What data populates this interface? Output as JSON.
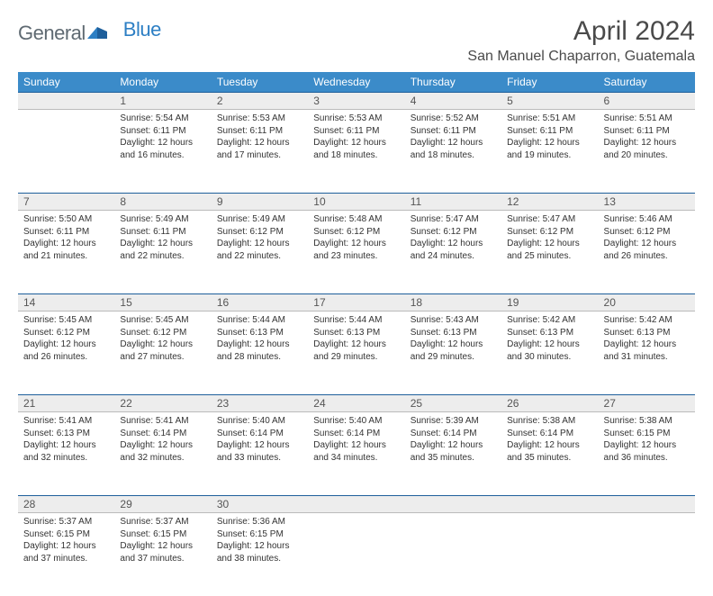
{
  "logo": {
    "part1": "General",
    "part2": "Blue"
  },
  "title": "April 2024",
  "location": "San Manuel Chaparron, Guatemala",
  "colors": {
    "header_bg": "#3b8bc9",
    "header_text": "#ffffff",
    "daynum_bg": "#ededed",
    "row_divider": "#1e5f9b",
    "logo_gray": "#5f6a72",
    "logo_blue": "#2d7fc4",
    "text": "#333333",
    "background": "#ffffff"
  },
  "day_headers": [
    "Sunday",
    "Monday",
    "Tuesday",
    "Wednesday",
    "Thursday",
    "Friday",
    "Saturday"
  ],
  "weeks": [
    [
      null,
      {
        "n": "1",
        "sr": "Sunrise: 5:54 AM",
        "ss": "Sunset: 6:11 PM",
        "d1": "Daylight: 12 hours",
        "d2": "and 16 minutes."
      },
      {
        "n": "2",
        "sr": "Sunrise: 5:53 AM",
        "ss": "Sunset: 6:11 PM",
        "d1": "Daylight: 12 hours",
        "d2": "and 17 minutes."
      },
      {
        "n": "3",
        "sr": "Sunrise: 5:53 AM",
        "ss": "Sunset: 6:11 PM",
        "d1": "Daylight: 12 hours",
        "d2": "and 18 minutes."
      },
      {
        "n": "4",
        "sr": "Sunrise: 5:52 AM",
        "ss": "Sunset: 6:11 PM",
        "d1": "Daylight: 12 hours",
        "d2": "and 18 minutes."
      },
      {
        "n": "5",
        "sr": "Sunrise: 5:51 AM",
        "ss": "Sunset: 6:11 PM",
        "d1": "Daylight: 12 hours",
        "d2": "and 19 minutes."
      },
      {
        "n": "6",
        "sr": "Sunrise: 5:51 AM",
        "ss": "Sunset: 6:11 PM",
        "d1": "Daylight: 12 hours",
        "d2": "and 20 minutes."
      }
    ],
    [
      {
        "n": "7",
        "sr": "Sunrise: 5:50 AM",
        "ss": "Sunset: 6:11 PM",
        "d1": "Daylight: 12 hours",
        "d2": "and 21 minutes."
      },
      {
        "n": "8",
        "sr": "Sunrise: 5:49 AM",
        "ss": "Sunset: 6:11 PM",
        "d1": "Daylight: 12 hours",
        "d2": "and 22 minutes."
      },
      {
        "n": "9",
        "sr": "Sunrise: 5:49 AM",
        "ss": "Sunset: 6:12 PM",
        "d1": "Daylight: 12 hours",
        "d2": "and 22 minutes."
      },
      {
        "n": "10",
        "sr": "Sunrise: 5:48 AM",
        "ss": "Sunset: 6:12 PM",
        "d1": "Daylight: 12 hours",
        "d2": "and 23 minutes."
      },
      {
        "n": "11",
        "sr": "Sunrise: 5:47 AM",
        "ss": "Sunset: 6:12 PM",
        "d1": "Daylight: 12 hours",
        "d2": "and 24 minutes."
      },
      {
        "n": "12",
        "sr": "Sunrise: 5:47 AM",
        "ss": "Sunset: 6:12 PM",
        "d1": "Daylight: 12 hours",
        "d2": "and 25 minutes."
      },
      {
        "n": "13",
        "sr": "Sunrise: 5:46 AM",
        "ss": "Sunset: 6:12 PM",
        "d1": "Daylight: 12 hours",
        "d2": "and 26 minutes."
      }
    ],
    [
      {
        "n": "14",
        "sr": "Sunrise: 5:45 AM",
        "ss": "Sunset: 6:12 PM",
        "d1": "Daylight: 12 hours",
        "d2": "and 26 minutes."
      },
      {
        "n": "15",
        "sr": "Sunrise: 5:45 AM",
        "ss": "Sunset: 6:12 PM",
        "d1": "Daylight: 12 hours",
        "d2": "and 27 minutes."
      },
      {
        "n": "16",
        "sr": "Sunrise: 5:44 AM",
        "ss": "Sunset: 6:13 PM",
        "d1": "Daylight: 12 hours",
        "d2": "and 28 minutes."
      },
      {
        "n": "17",
        "sr": "Sunrise: 5:44 AM",
        "ss": "Sunset: 6:13 PM",
        "d1": "Daylight: 12 hours",
        "d2": "and 29 minutes."
      },
      {
        "n": "18",
        "sr": "Sunrise: 5:43 AM",
        "ss": "Sunset: 6:13 PM",
        "d1": "Daylight: 12 hours",
        "d2": "and 29 minutes."
      },
      {
        "n": "19",
        "sr": "Sunrise: 5:42 AM",
        "ss": "Sunset: 6:13 PM",
        "d1": "Daylight: 12 hours",
        "d2": "and 30 minutes."
      },
      {
        "n": "20",
        "sr": "Sunrise: 5:42 AM",
        "ss": "Sunset: 6:13 PM",
        "d1": "Daylight: 12 hours",
        "d2": "and 31 minutes."
      }
    ],
    [
      {
        "n": "21",
        "sr": "Sunrise: 5:41 AM",
        "ss": "Sunset: 6:13 PM",
        "d1": "Daylight: 12 hours",
        "d2": "and 32 minutes."
      },
      {
        "n": "22",
        "sr": "Sunrise: 5:41 AM",
        "ss": "Sunset: 6:14 PM",
        "d1": "Daylight: 12 hours",
        "d2": "and 32 minutes."
      },
      {
        "n": "23",
        "sr": "Sunrise: 5:40 AM",
        "ss": "Sunset: 6:14 PM",
        "d1": "Daylight: 12 hours",
        "d2": "and 33 minutes."
      },
      {
        "n": "24",
        "sr": "Sunrise: 5:40 AM",
        "ss": "Sunset: 6:14 PM",
        "d1": "Daylight: 12 hours",
        "d2": "and 34 minutes."
      },
      {
        "n": "25",
        "sr": "Sunrise: 5:39 AM",
        "ss": "Sunset: 6:14 PM",
        "d1": "Daylight: 12 hours",
        "d2": "and 35 minutes."
      },
      {
        "n": "26",
        "sr": "Sunrise: 5:38 AM",
        "ss": "Sunset: 6:14 PM",
        "d1": "Daylight: 12 hours",
        "d2": "and 35 minutes."
      },
      {
        "n": "27",
        "sr": "Sunrise: 5:38 AM",
        "ss": "Sunset: 6:15 PM",
        "d1": "Daylight: 12 hours",
        "d2": "and 36 minutes."
      }
    ],
    [
      {
        "n": "28",
        "sr": "Sunrise: 5:37 AM",
        "ss": "Sunset: 6:15 PM",
        "d1": "Daylight: 12 hours",
        "d2": "and 37 minutes."
      },
      {
        "n": "29",
        "sr": "Sunrise: 5:37 AM",
        "ss": "Sunset: 6:15 PM",
        "d1": "Daylight: 12 hours",
        "d2": "and 37 minutes."
      },
      {
        "n": "30",
        "sr": "Sunrise: 5:36 AM",
        "ss": "Sunset: 6:15 PM",
        "d1": "Daylight: 12 hours",
        "d2": "and 38 minutes."
      },
      null,
      null,
      null,
      null
    ]
  ]
}
